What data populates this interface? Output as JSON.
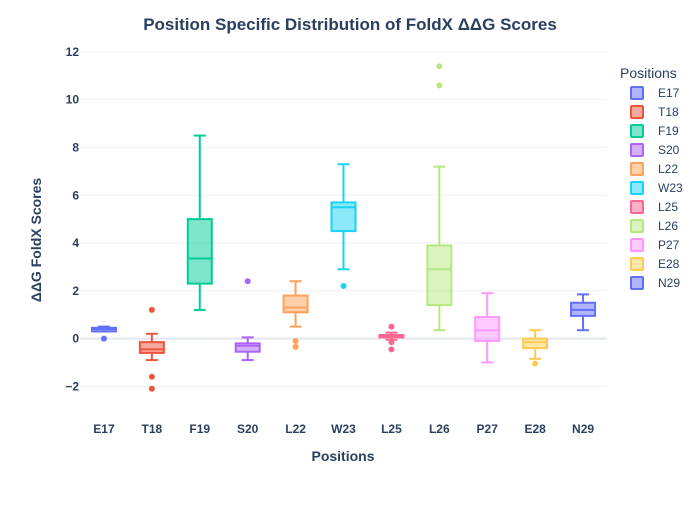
{
  "chart_data": {
    "type": "box",
    "title": "Position Specific Distribution of FoldX ΔΔG Scores",
    "xlabel": "Positions",
    "ylabel": "ΔΔG FoldX Scores",
    "ylim": [
      -3.2,
      12.5
    ],
    "yticks": [
      -2,
      0,
      2,
      4,
      6,
      8,
      10,
      12
    ],
    "ytick_labels": [
      "−2",
      "0",
      "2",
      "4",
      "6",
      "8",
      "10",
      "12"
    ],
    "grid": true,
    "legend": {
      "title": "Positions",
      "placement": "right"
    },
    "categories": [
      "E17",
      "T18",
      "F19",
      "S20",
      "L22",
      "W23",
      "L25",
      "L26",
      "P27",
      "E28",
      "N29"
    ],
    "series": [
      {
        "name": "E17",
        "color": "#636efa",
        "min": 0.3,
        "q1": 0.3,
        "median": 0.4,
        "q3": 0.45,
        "max": 0.5,
        "outliers": [
          0.0
        ]
      },
      {
        "name": "T18",
        "color": "#ef553b",
        "min": -0.9,
        "q1": -0.6,
        "median": -0.45,
        "q3": -0.15,
        "max": 0.2,
        "outliers": [
          1.2,
          -1.6,
          -2.1
        ]
      },
      {
        "name": "F19",
        "color": "#00cc96",
        "min": 1.2,
        "q1": 2.3,
        "median": 3.35,
        "q3": 5.0,
        "max": 8.5,
        "outliers": []
      },
      {
        "name": "S20",
        "color": "#ab63fa",
        "min": -0.9,
        "q1": -0.55,
        "median": -0.3,
        "q3": -0.2,
        "max": 0.05,
        "outliers": [
          2.4
        ]
      },
      {
        "name": "L22",
        "color": "#ffa15a",
        "min": 0.5,
        "q1": 1.1,
        "median": 1.3,
        "q3": 1.8,
        "max": 2.4,
        "outliers": [
          -0.1,
          -0.35
        ]
      },
      {
        "name": "W23",
        "color": "#19d3f3",
        "min": 2.9,
        "q1": 4.5,
        "median": 5.5,
        "q3": 5.7,
        "max": 7.3,
        "outliers": [
          2.2
        ]
      },
      {
        "name": "L25",
        "color": "#ff6692",
        "min": -0.05,
        "q1": 0.05,
        "median": 0.1,
        "q3": 0.15,
        "max": 0.25,
        "outliers": [
          0.5,
          -0.15,
          -0.45
        ]
      },
      {
        "name": "L26",
        "color": "#b6e880",
        "min": 0.35,
        "q1": 1.4,
        "median": 2.9,
        "q3": 3.9,
        "max": 7.2,
        "outliers": [
          10.6,
          11.4
        ]
      },
      {
        "name": "P27",
        "color": "#ff97ff",
        "min": -1.0,
        "q1": -0.1,
        "median": 0.35,
        "q3": 0.9,
        "max": 1.9,
        "outliers": []
      },
      {
        "name": "E28",
        "color": "#fecb52",
        "min": -0.85,
        "q1": -0.4,
        "median": -0.15,
        "q3": 0.0,
        "max": 0.35,
        "outliers": [
          -1.05
        ]
      },
      {
        "name": "N29",
        "color": "#636efa",
        "min": 0.35,
        "q1": 0.95,
        "median": 1.2,
        "q3": 1.5,
        "max": 1.85,
        "outliers": []
      }
    ]
  }
}
